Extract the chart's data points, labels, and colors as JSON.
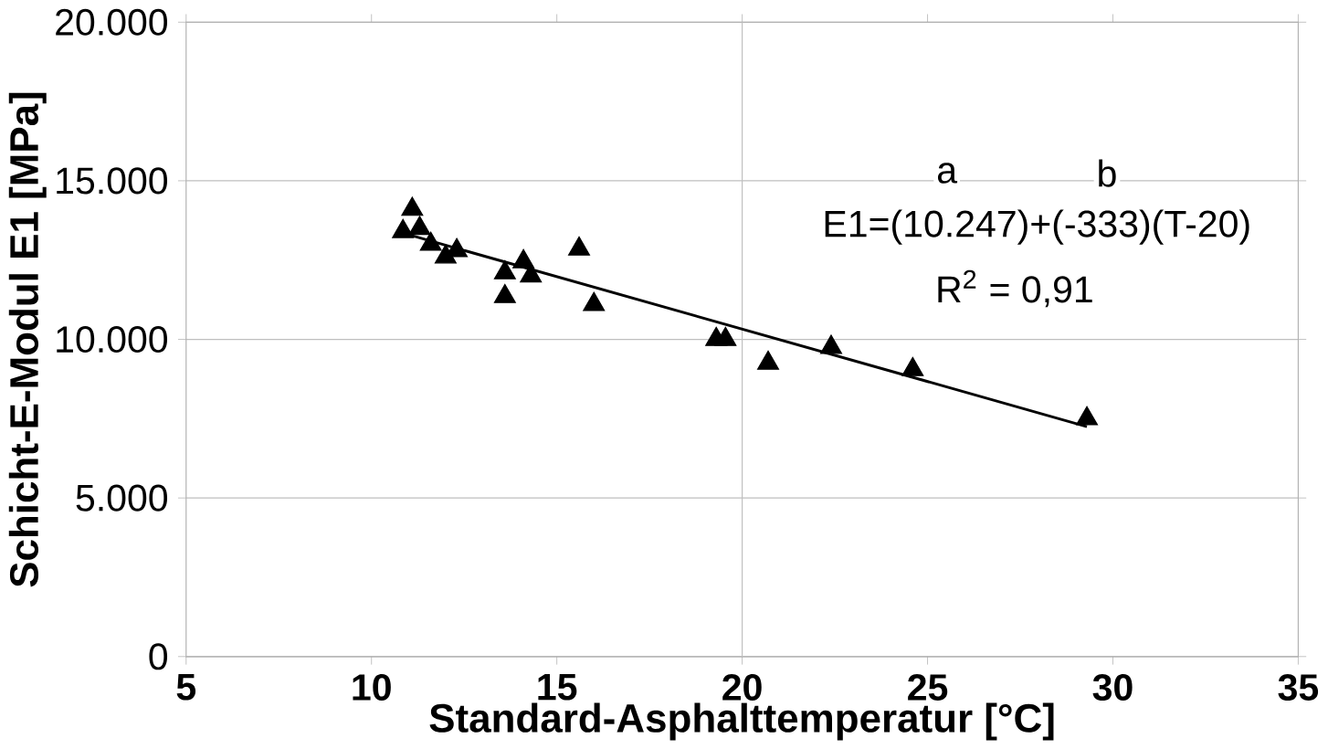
{
  "chart_data": {
    "type": "scatter",
    "xlabel": "Standard-Asphalttemperatur [°C]",
    "ylabel": "Schicht-E-Modul E1 [MPa]",
    "xlim": [
      5,
      35
    ],
    "xticks": [
      5,
      10,
      15,
      20,
      25,
      30,
      35
    ],
    "ylim": [
      0,
      20000
    ],
    "yticks": [
      {
        "value": 0,
        "label": "0"
      },
      {
        "value": 5000,
        "label": "5.000"
      },
      {
        "value": 10000,
        "label": "10.000"
      },
      {
        "value": 15000,
        "label": "15.000"
      },
      {
        "value": 20000,
        "label": "20.000"
      }
    ],
    "grid": "y",
    "marker": "triangle",
    "series": [
      {
        "color": "#000000",
        "x": [
          11.1,
          10.85,
          11.3,
          11.6,
          12.0,
          12.3,
          13.6,
          13.6,
          14.1,
          14.3,
          15.6,
          16.0,
          19.3,
          19.55,
          20.7,
          22.4,
          24.6,
          29.3
        ],
        "values": [
          14100,
          13400,
          13500,
          13000,
          12600,
          12800,
          12100,
          11350,
          12450,
          12000,
          12850,
          11100,
          10000,
          10000,
          9250,
          9750,
          9050,
          7500
        ]
      },
      {
        "type": "line",
        "color": "#000000",
        "marker": "none",
        "x": [
          11,
          29.3
        ],
        "values": [
          13300,
          7250
        ]
      }
    ],
    "ref_lines": [
      {
        "axis": "x",
        "value": 20,
        "color": "#c0c0c0"
      }
    ],
    "annotations": [
      "a",
      "b",
      "E1=(10.247)+(-333)(T-20)",
      "R$^{2}$ = 0,91"
    ]
  }
}
